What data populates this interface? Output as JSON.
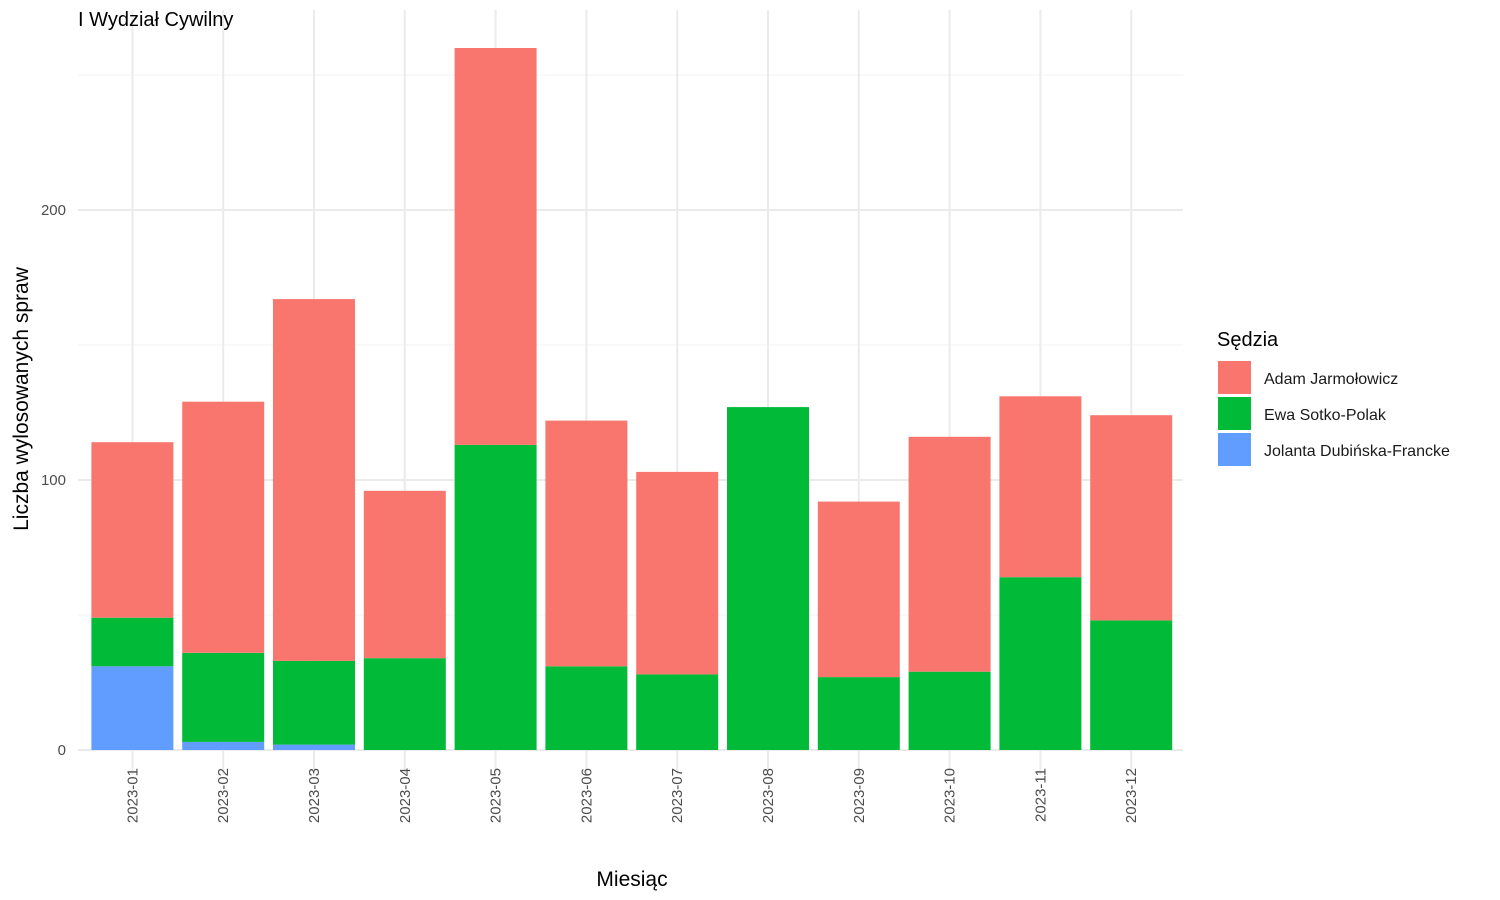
{
  "chart_data": {
    "type": "bar",
    "stacked": true,
    "title": "I Wydział Cywilny",
    "xlabel": "Miesiąc",
    "ylabel": "Liczba wylosowanych spraw",
    "ylim": [
      0,
      260
    ],
    "yticks": [
      0,
      100,
      200
    ],
    "grid": true,
    "legend_position": "right",
    "legend_title": "Sędzia",
    "categories": [
      "2023-01",
      "2023-02",
      "2023-03",
      "2023-04",
      "2023-05",
      "2023-06",
      "2023-07",
      "2023-08",
      "2023-09",
      "2023-10",
      "2023-11",
      "2023-12"
    ],
    "series": [
      {
        "name": "Jolanta Dubińska-Francke",
        "color": "#619CFF",
        "values": [
          31,
          3,
          2,
          0,
          0,
          0,
          0,
          0,
          0,
          0,
          0,
          0
        ]
      },
      {
        "name": "Ewa Sotko-Polak",
        "color": "#00BA38",
        "values": [
          18,
          33,
          31,
          34,
          113,
          31,
          28,
          127,
          27,
          29,
          64,
          48
        ]
      },
      {
        "name": "Adam Jarmołowicz",
        "color": "#F8766D",
        "values": [
          65,
          93,
          134,
          62,
          147,
          91,
          75,
          0,
          65,
          87,
          67,
          76
        ]
      }
    ],
    "legend_order": [
      "Adam Jarmołowicz",
      "Ewa Sotko-Polak",
      "Jolanta Dubińska-Francke"
    ]
  }
}
